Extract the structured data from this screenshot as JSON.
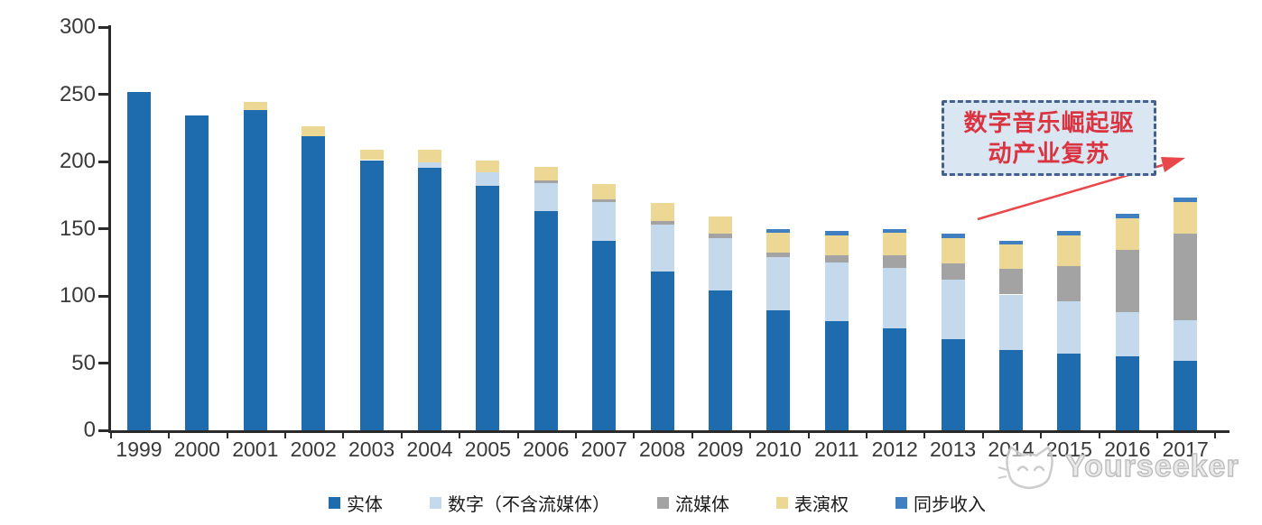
{
  "chart_data": {
    "type": "bar",
    "stacked": true,
    "title": "",
    "categories": [
      "1999",
      "2000",
      "2001",
      "2002",
      "2003",
      "2004",
      "2005",
      "2006",
      "2007",
      "2008",
      "2009",
      "2010",
      "2011",
      "2012",
      "2013",
      "2014",
      "2015",
      "2016",
      "2017"
    ],
    "series": [
      {
        "name": "实体",
        "color": "#1e6cad",
        "values": [
          252,
          234,
          238,
          219,
          201,
          195,
          182,
          163,
          141,
          118,
          104,
          89,
          81,
          76,
          68,
          60,
          57,
          55,
          52
        ]
      },
      {
        "name": "数字（不含流媒体）",
        "color": "#c5d9ed",
        "values": [
          0,
          0,
          0,
          0,
          0,
          4,
          10,
          21,
          29,
          35,
          39,
          40,
          44,
          45,
          44,
          41,
          39,
          33,
          30
        ]
      },
      {
        "name": "流媒体",
        "color": "#a3a3a3",
        "values": [
          0,
          0,
          0,
          0,
          0,
          0,
          0,
          2,
          2,
          3,
          3,
          3,
          5,
          9,
          12,
          19,
          26,
          46,
          64
        ]
      },
      {
        "name": "表演权",
        "color": "#ecd795",
        "values": [
          0,
          0,
          6,
          7,
          8,
          10,
          9,
          10,
          11,
          13,
          13,
          15,
          15,
          17,
          19,
          18,
          23,
          24,
          24
        ]
      },
      {
        "name": "同步收入",
        "color": "#4080c0",
        "values": [
          0,
          0,
          0,
          0,
          0,
          0,
          0,
          0,
          0,
          0,
          0,
          3,
          3,
          3,
          3,
          3,
          3,
          3,
          3
        ]
      }
    ],
    "xlabel": "",
    "ylabel": "",
    "ylim": [
      0,
      300
    ],
    "yticks": [
      0,
      50,
      100,
      150,
      200,
      250,
      300
    ],
    "grid": false,
    "legend_position": "bottom"
  },
  "annotation": {
    "lines": [
      "数字音乐崛起驱",
      "动产业复苏"
    ],
    "text_color": "#d93440",
    "box_fill": "#dbe6f3",
    "box_border": "#44608d",
    "arrow_color": "#e8474b"
  },
  "watermark": {
    "text": "Yourseeker",
    "logo": "cat-logo",
    "color": "#bdbdbd"
  }
}
